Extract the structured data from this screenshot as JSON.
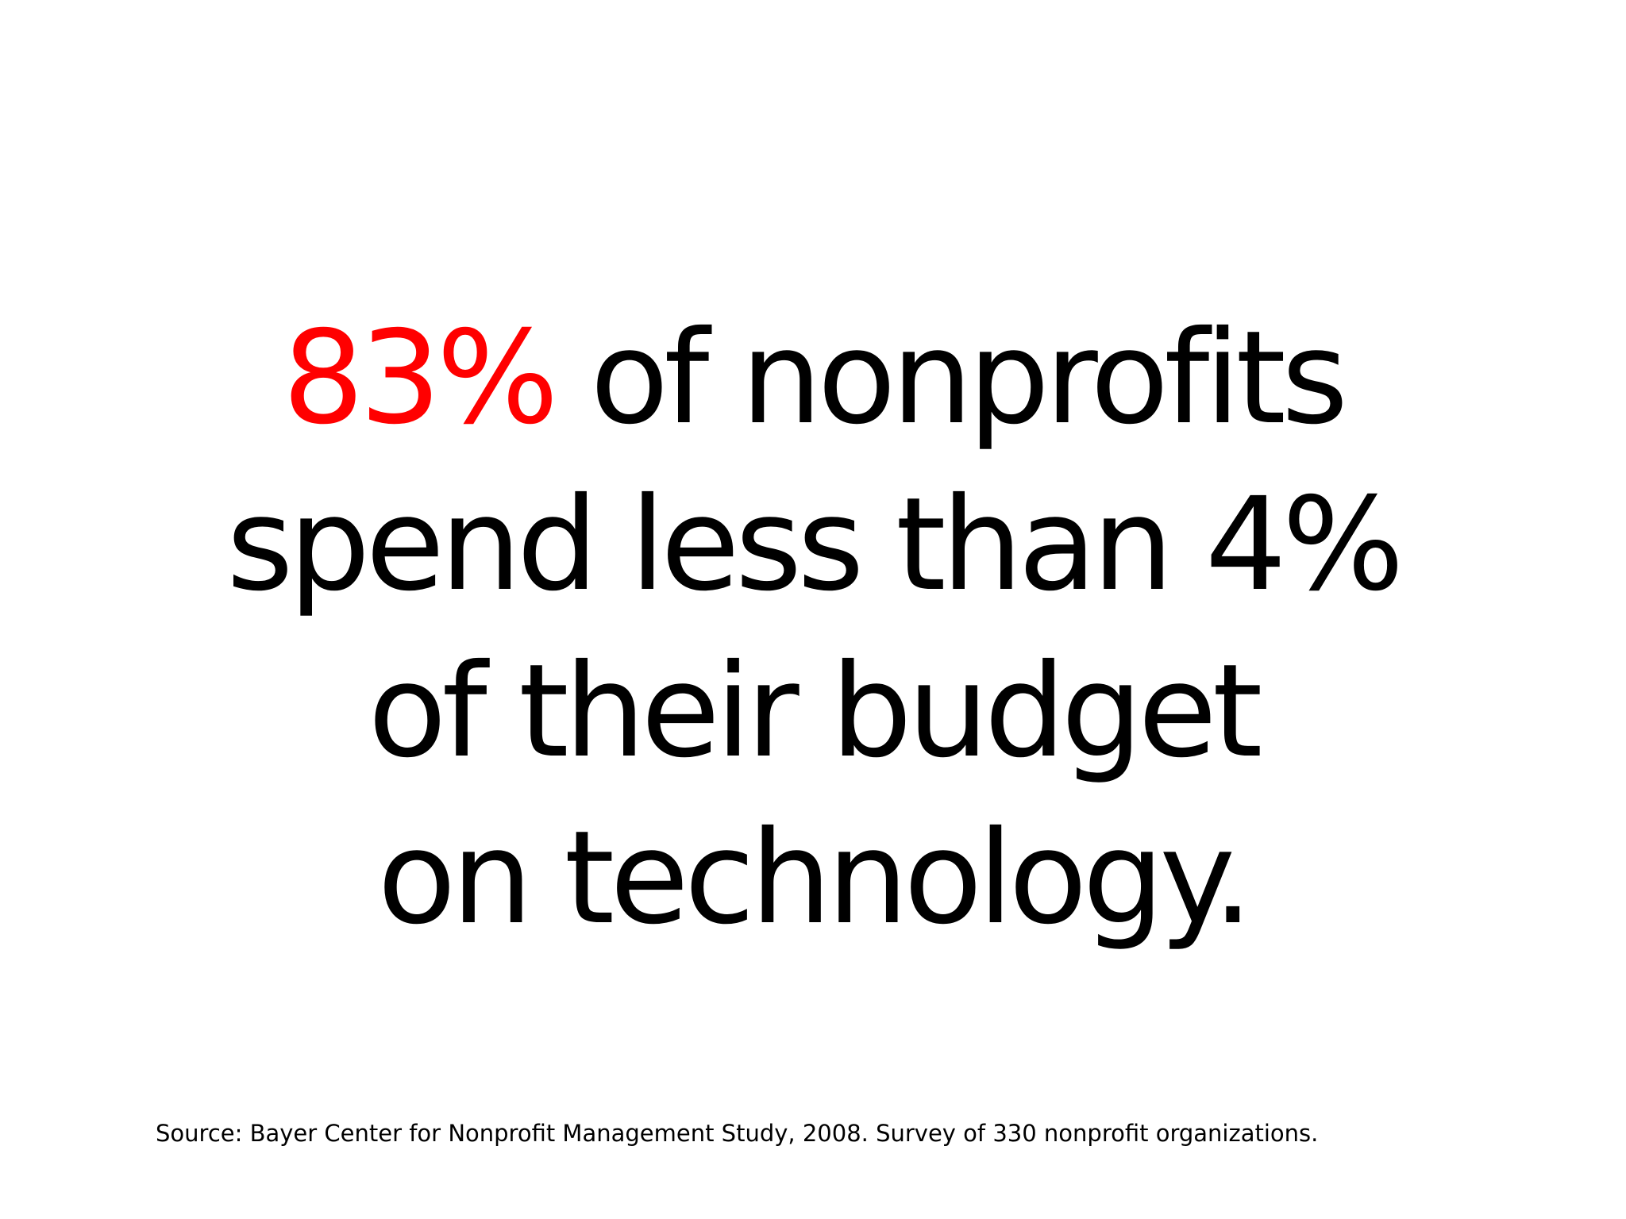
{
  "slide": {
    "headline": {
      "highlight": "83%",
      "line1_rest": " of nonprofits",
      "line2": "spend less than 4%",
      "line3": "of their budget",
      "line4": "on technology."
    },
    "source": "Source: Bayer Center for Nonprofit Management Study, 2008. Survey of 330 nonprofit organizations.",
    "colors": {
      "highlight": "#ff0000",
      "text": "#000000",
      "background": "#ffffff"
    }
  }
}
